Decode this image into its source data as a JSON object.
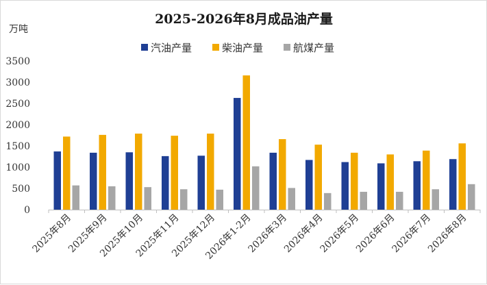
{
  "chart_data": {
    "type": "bar",
    "title": "2025-2026年8月成品油产量",
    "unit": "万吨",
    "categories": [
      "2025年8月",
      "2025年9月",
      "2025年10月",
      "2025年11月",
      "2025年12月",
      "2026年1-2月",
      "2026年3月",
      "2026年4月",
      "2026年5月",
      "2026年6月",
      "2026年7月",
      "2026年8月"
    ],
    "series": [
      {
        "name": "汽油产量",
        "color": "#1f3f94",
        "values": [
          1370,
          1340,
          1350,
          1260,
          1270,
          2630,
          1340,
          1170,
          1120,
          1090,
          1140,
          1190
        ]
      },
      {
        "name": "柴油产量",
        "color": "#f2a900",
        "values": [
          1720,
          1760,
          1790,
          1740,
          1790,
          3160,
          1660,
          1530,
          1340,
          1300,
          1390,
          1560
        ]
      },
      {
        "name": "航煤产量",
        "color": "#a6a6a6",
        "values": [
          570,
          550,
          530,
          480,
          470,
          1020,
          510,
          390,
          420,
          420,
          480,
          600
        ]
      }
    ],
    "yticks": [
      "0",
      "500",
      "1000",
      "1500",
      "2000",
      "2500",
      "3000",
      "3500"
    ],
    "ylim": [
      0,
      3500
    ],
    "legend_position": "top",
    "grid": false
  }
}
